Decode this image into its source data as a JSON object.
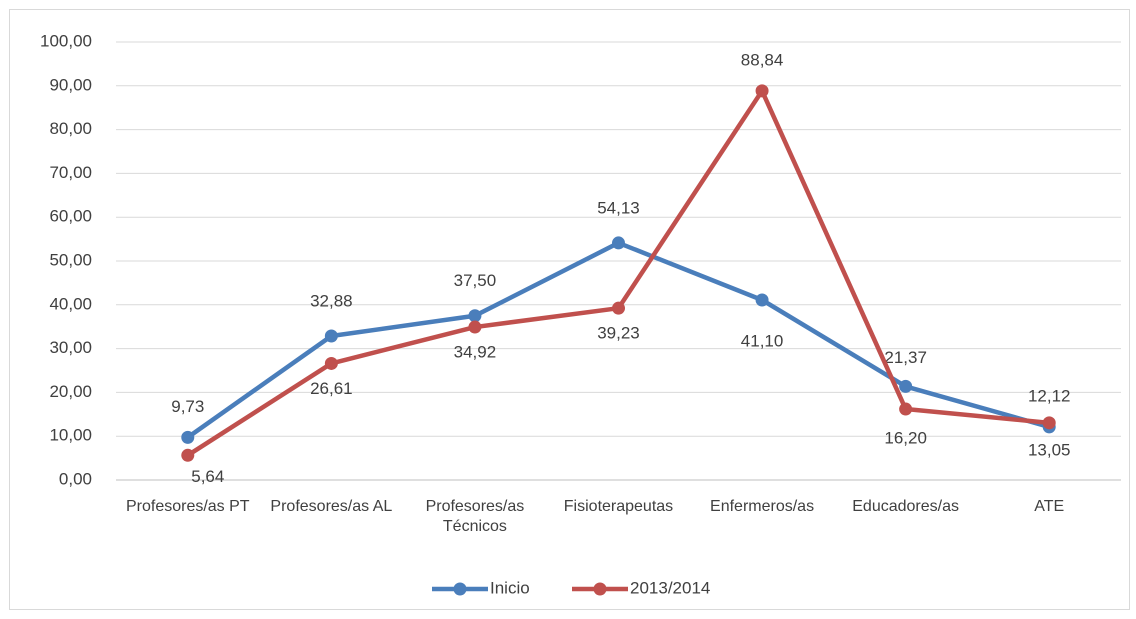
{
  "chart_data": {
    "type": "line",
    "categories": [
      "Profesores/as PT",
      "Profesores/as AL",
      "Profesores/as Técnicos",
      "Fisioterapeutas",
      "Enfermeros/as",
      "Educadores/as",
      "ATE"
    ],
    "series": [
      {
        "name": "Inicio",
        "color": "#4a7ebb",
        "values": [
          9.73,
          32.88,
          37.5,
          54.13,
          41.1,
          21.37,
          12.12
        ],
        "value_labels": [
          "9,73",
          "32,88",
          "37,50",
          "54,13",
          "41,10",
          "21,37",
          "12,12"
        ]
      },
      {
        "name": "2013/2014",
        "color": "#c0504d",
        "values": [
          5.64,
          26.61,
          34.92,
          39.23,
          88.84,
          16.2,
          13.05
        ],
        "value_labels": [
          "5,64",
          "26,61",
          "34,92",
          "39,23",
          "88,84",
          "16,20",
          "13,05"
        ]
      }
    ],
    "ylim": [
      0,
      100
    ],
    "yticks": [
      {
        "value": 0,
        "label": "0,00"
      },
      {
        "value": 10,
        "label": "10,00"
      },
      {
        "value": 20,
        "label": "20,00"
      },
      {
        "value": 30,
        "label": "30,00"
      },
      {
        "value": 40,
        "label": "40,00"
      },
      {
        "value": 50,
        "label": "50,00"
      },
      {
        "value": 60,
        "label": "60,00"
      },
      {
        "value": 70,
        "label": "70,00"
      },
      {
        "value": 80,
        "label": "80,00"
      },
      {
        "value": 90,
        "label": "90,00"
      },
      {
        "value": 100,
        "label": "100,00"
      }
    ],
    "grid": true,
    "legend": "bottom"
  }
}
